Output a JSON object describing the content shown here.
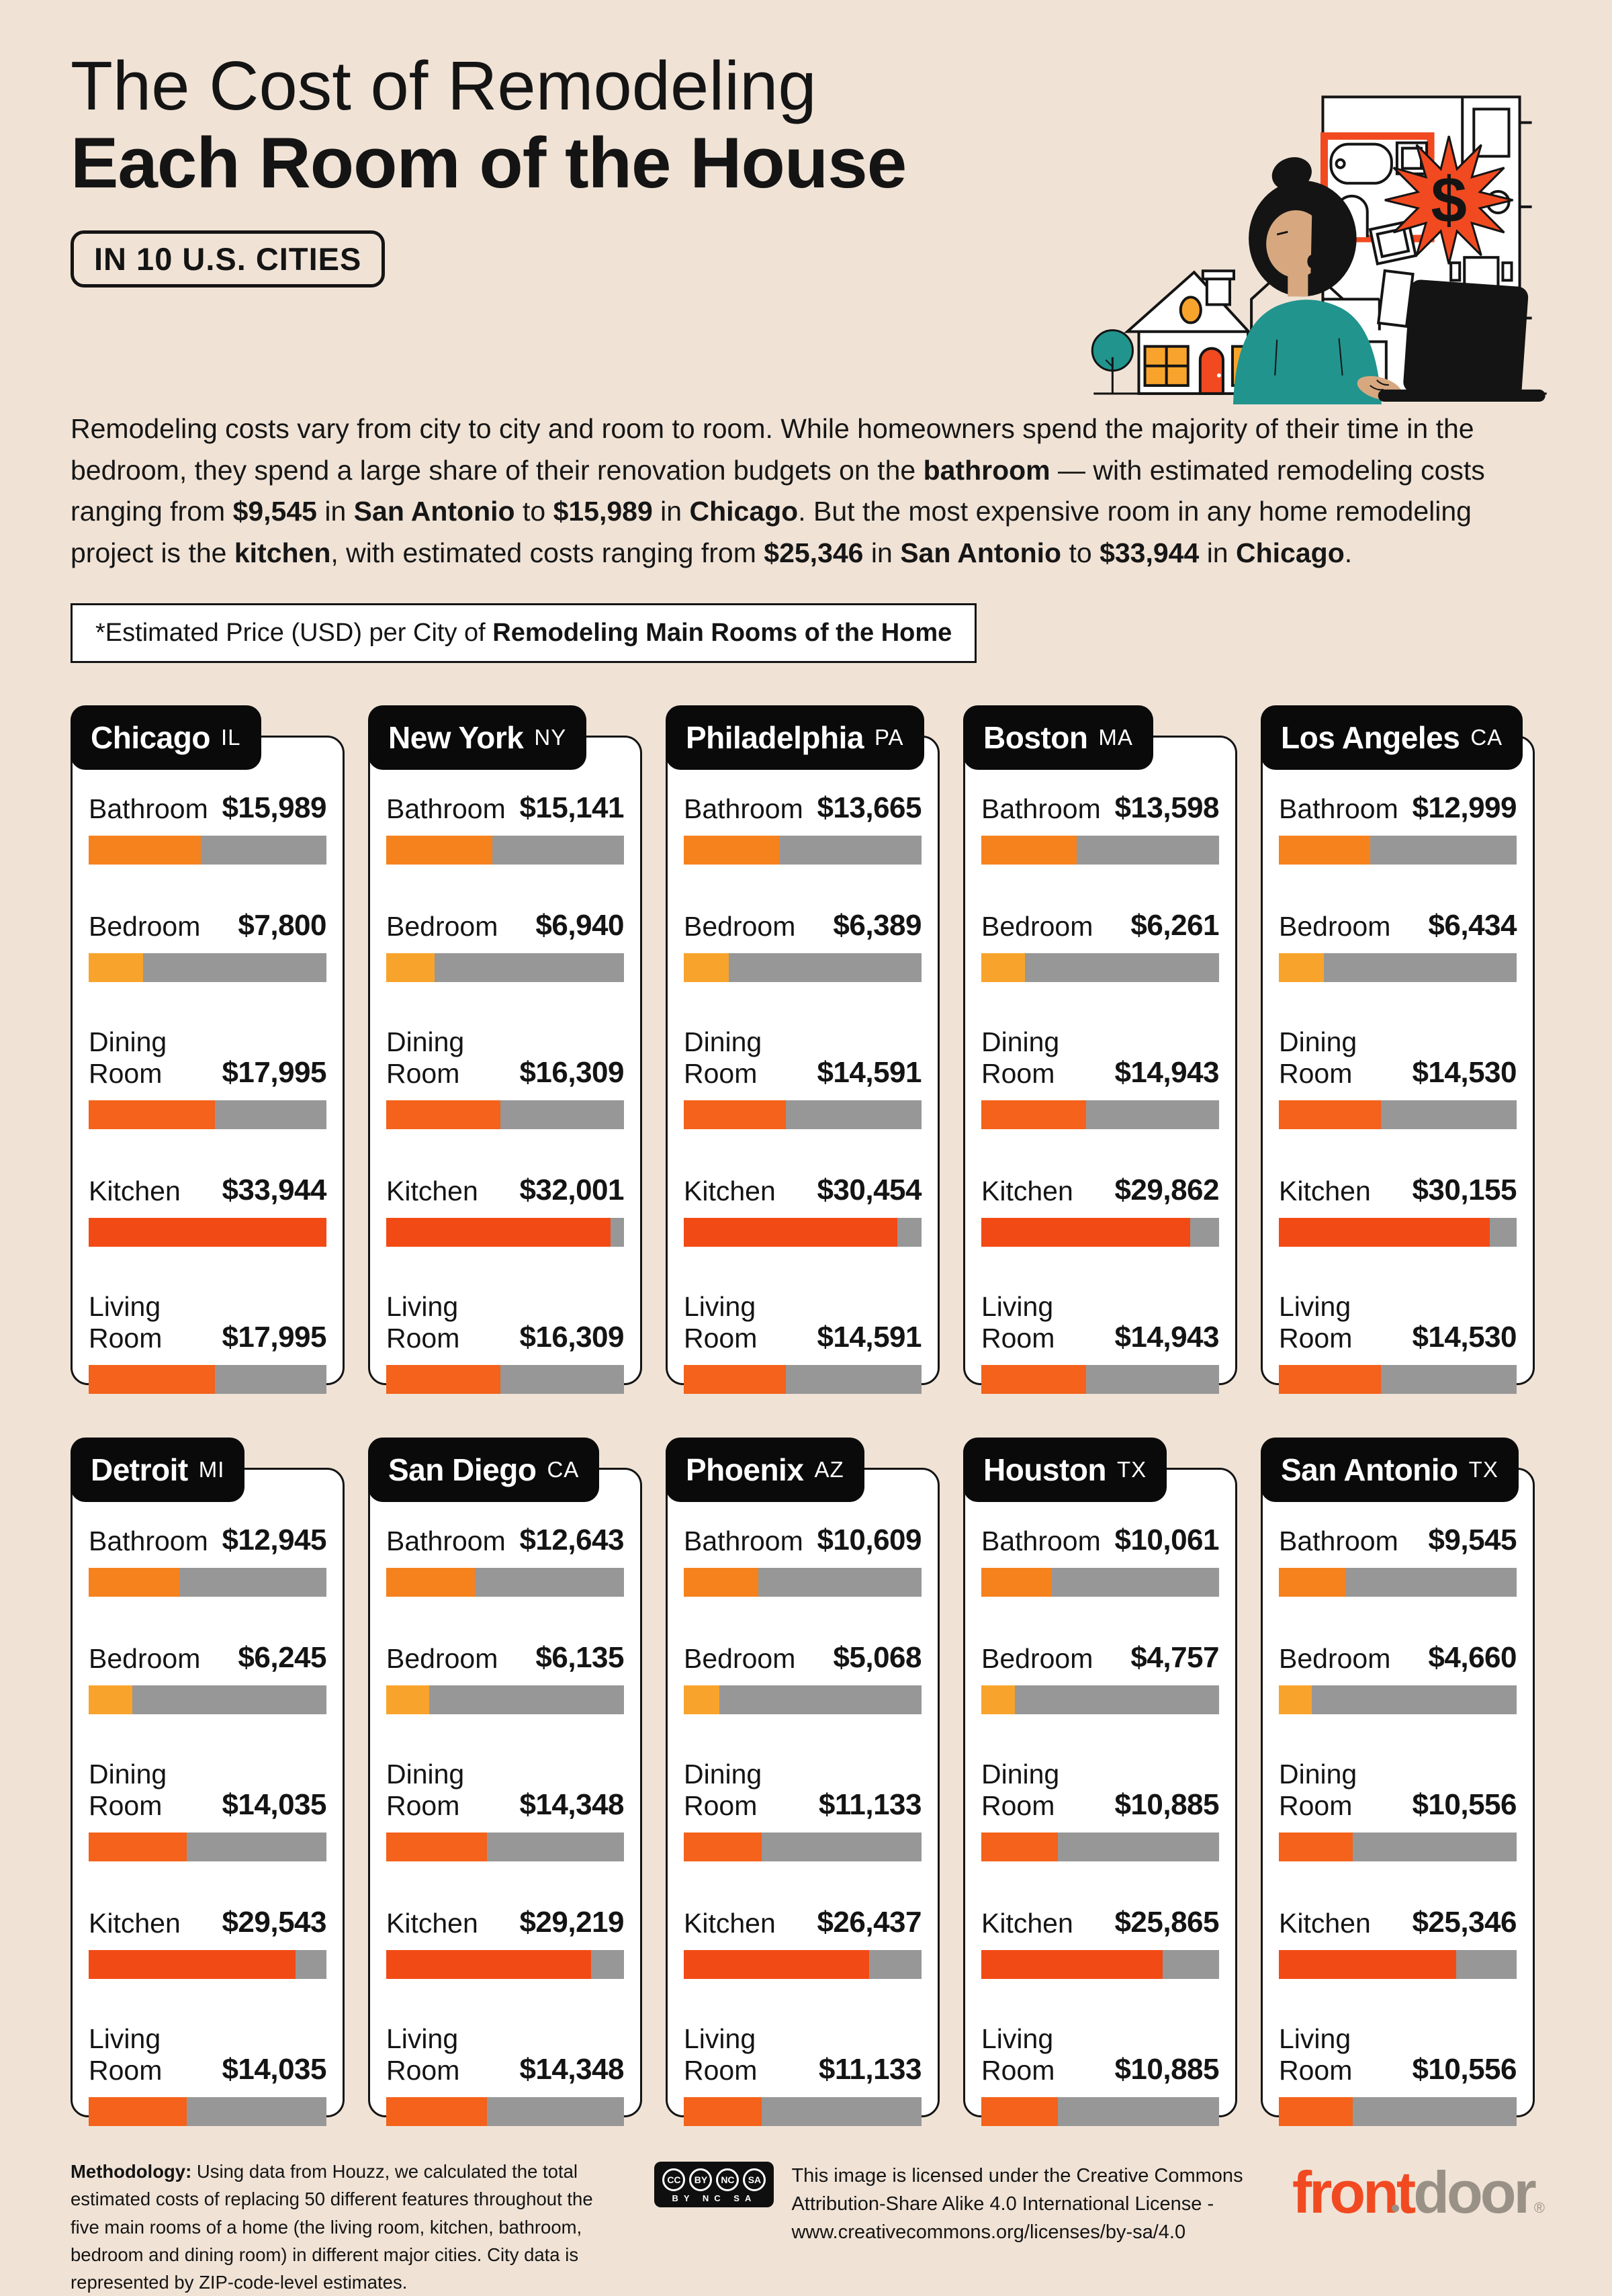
{
  "header": {
    "title_line1": "The Cost of Remodeling",
    "title_line2": "Each Room of the House",
    "badge": "IN 10 U.S. CITIES"
  },
  "intro": {
    "segments": [
      {
        "text": "Remodeling costs vary from city to city and room to room. While homeowners spend the majority of their time in the bedroom, they spend a large share of their renovation budgets on the ",
        "bold": false
      },
      {
        "text": "bathroom",
        "bold": true
      },
      {
        "text": " — with estimated remodeling costs ranging from ",
        "bold": false
      },
      {
        "text": "$9,545",
        "bold": true
      },
      {
        "text": " in ",
        "bold": false
      },
      {
        "text": "San Antonio",
        "bold": true
      },
      {
        "text": " to ",
        "bold": false
      },
      {
        "text": "$15,989",
        "bold": true
      },
      {
        "text": " in ",
        "bold": false
      },
      {
        "text": "Chicago",
        "bold": true
      },
      {
        "text": ". But the most expensive room in any home remodeling project is the ",
        "bold": false
      },
      {
        "text": "kitchen",
        "bold": true
      },
      {
        "text": ", with estimated costs ranging from ",
        "bold": false
      },
      {
        "text": "$25,346",
        "bold": true
      },
      {
        "text": " in ",
        "bold": false
      },
      {
        "text": "San Antonio",
        "bold": true
      },
      {
        "text": " to ",
        "bold": false
      },
      {
        "text": "$33,944",
        "bold": true
      },
      {
        "text": " in ",
        "bold": false
      },
      {
        "text": "Chicago",
        "bold": true
      },
      {
        "text": ".",
        "bold": false
      }
    ]
  },
  "note": {
    "prefix": "*Estimated Price (USD) per City of ",
    "bold": "Remodeling Main Rooms of the Home"
  },
  "chart_data": {
    "type": "bar",
    "title": "The Cost of Remodeling Each Room of the House in 10 U.S. Cities",
    "subtitle": "*Estimated Price (USD) per City of Remodeling Main Rooms of the Home",
    "unit": "USD",
    "max_value": 33944,
    "grid": false,
    "legend": "none",
    "rooms": [
      "Bathroom",
      "Bedroom",
      "Dining Room",
      "Kitchen",
      "Living Room"
    ],
    "cities": [
      {
        "name": "Chicago",
        "state": "IL",
        "values": [
          15989,
          7800,
          17995,
          33944,
          17995
        ],
        "prices": [
          "$15,989",
          "$7,800",
          "$17,995",
          "$33,944",
          "$17,995"
        ]
      },
      {
        "name": "New York",
        "state": "NY",
        "values": [
          15141,
          6940,
          16309,
          32001,
          16309
        ],
        "prices": [
          "$15,141",
          "$6,940",
          "$16,309",
          "$32,001",
          "$16,309"
        ]
      },
      {
        "name": "Philadelphia",
        "state": "PA",
        "values": [
          13665,
          6389,
          14591,
          30454,
          14591
        ],
        "prices": [
          "$13,665",
          "$6,389",
          "$14,591",
          "$30,454",
          "$14,591"
        ]
      },
      {
        "name": "Boston",
        "state": "MA",
        "values": [
          13598,
          6261,
          14943,
          29862,
          14943
        ],
        "prices": [
          "$13,598",
          "$6,261",
          "$14,943",
          "$29,862",
          "$14,943"
        ]
      },
      {
        "name": "Los Angeles",
        "state": "CA",
        "values": [
          12999,
          6434,
          14530,
          30155,
          14530
        ],
        "prices": [
          "$12,999",
          "$6,434",
          "$14,530",
          "$30,155",
          "$14,530"
        ]
      },
      {
        "name": "Detroit",
        "state": "MI",
        "values": [
          12945,
          6245,
          14035,
          29543,
          14035
        ],
        "prices": [
          "$12,945",
          "$6,245",
          "$14,035",
          "$29,543",
          "$14,035"
        ]
      },
      {
        "name": "San Diego",
        "state": "CA",
        "values": [
          12643,
          6135,
          14348,
          29219,
          14348
        ],
        "prices": [
          "$12,643",
          "$6,135",
          "$14,348",
          "$29,219",
          "$14,348"
        ]
      },
      {
        "name": "Phoenix",
        "state": "AZ",
        "values": [
          10609,
          5068,
          11133,
          26437,
          11133
        ],
        "prices": [
          "$10,609",
          "$5,068",
          "$11,133",
          "$26,437",
          "$11,133"
        ]
      },
      {
        "name": "Houston",
        "state": "TX",
        "values": [
          10061,
          4757,
          10885,
          25865,
          10885
        ],
        "prices": [
          "$10,061",
          "$4,757",
          "$10,885",
          "$25,865",
          "$10,885"
        ]
      },
      {
        "name": "San Antonio",
        "state": "TX",
        "values": [
          9545,
          4660,
          10556,
          25346,
          10556
        ],
        "prices": [
          "$9,545",
          "$4,660",
          "$10,556",
          "$25,346",
          "$10,556"
        ]
      }
    ]
  },
  "cards": {
    "room_colors": {
      "Bathroom": "#F6821E",
      "Bedroom": "#F8A42C",
      "Dining Room": "#F4621B",
      "Kitchen": "#F24A15",
      "Living Room": "#F4621B"
    },
    "track_color": "#979797"
  },
  "palette": {
    "background": "#F0E3D6",
    "ink": "#141414",
    "accent": "#F14A21",
    "amber": "#F8A42C",
    "teal": "#21948E",
    "logo_gray": "#9A9186"
  },
  "footer": {
    "methodology_label": "Methodology:",
    "methodology_text": " Using data from Houzz, we calculated the total estimated costs of replacing 50 different features throughout the five main rooms of a home (the living room, kitchen, bathroom, bedroom and dining room) in different major cities. City data is represented by ZIP-code-level estimates.",
    "license_badges": [
      "CC",
      "BY",
      "NC",
      "SA"
    ],
    "license_sub": "BY NC SA",
    "license_text": "This image is licensed under the Creative Commons Attribution-Share Alike 4.0 International License - www.creativecommons.org/licenses/by-sa/4.0",
    "logo": {
      "part1": "front",
      "part2": "door",
      "reg": "®"
    }
  }
}
